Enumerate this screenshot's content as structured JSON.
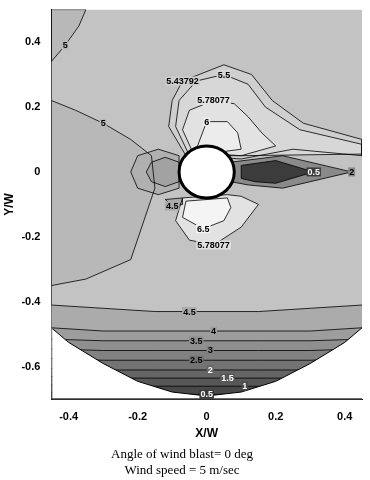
{
  "chart_data": {
    "type": "contour",
    "subtitle": [
      "Angle of wind blast= 0 deg",
      "Wind speed = 5 m/sec"
    ],
    "x_label": "X/W",
    "y_label": "Y/W",
    "xlim": [
      -0.45,
      0.45
    ],
    "xticks": [
      -0.4,
      -0.2,
      0,
      0.2,
      0.4
    ],
    "ylim": [
      -0.7,
      0.5
    ],
    "yticks": [
      -0.6,
      -0.4,
      -0.2,
      0,
      0.2,
      0.4
    ],
    "grid": false,
    "color": "#c3c3c3",
    "cylinder": {
      "center": [
        0,
        0
      ],
      "radius": 0.08
    },
    "domain_edge": [
      [
        -0.45,
        -0.48
      ],
      [
        -0.4,
        -0.525
      ],
      [
        -0.3,
        -0.59
      ],
      [
        -0.2,
        -0.645
      ],
      [
        -0.1,
        -0.678
      ],
      [
        0,
        -0.69
      ],
      [
        0.1,
        -0.678
      ],
      [
        0.2,
        -0.645
      ],
      [
        0.3,
        -0.59
      ],
      [
        0.4,
        -0.525
      ],
      [
        0.45,
        -0.48
      ]
    ],
    "series": [
      {
        "name": "4.5",
        "color": "#ababab",
        "values": [
          [
            -0.45,
            -0.41
          ],
          [
            -0.3,
            -0.42
          ],
          [
            -0.15,
            -0.43
          ],
          [
            -0.05,
            -0.43
          ],
          [
            0.15,
            -0.43
          ],
          [
            0.3,
            -0.42
          ],
          [
            0.45,
            -0.41
          ]
        ]
      },
      {
        "name": "4",
        "color": "#9d9d9d",
        "values": [
          [
            -0.45,
            -0.48
          ],
          [
            -0.3,
            -0.49
          ],
          [
            -0.15,
            -0.49
          ],
          [
            0.02,
            -0.49
          ],
          [
            0.15,
            -0.49
          ],
          [
            0.3,
            -0.49
          ],
          [
            0.45,
            -0.48
          ]
        ]
      },
      {
        "name": "3.5",
        "color": "#8f8f8f",
        "values": [
          [
            -0.45,
            -0.515
          ],
          [
            -0.3,
            -0.52
          ],
          [
            -0.15,
            -0.52
          ],
          [
            -0.03,
            -0.52
          ],
          [
            0.15,
            -0.52
          ],
          [
            0.3,
            -0.52
          ],
          [
            0.45,
            -0.515
          ]
        ]
      },
      {
        "name": "3",
        "color": "#818181",
        "values": [
          [
            -0.45,
            -0.545
          ],
          [
            -0.3,
            -0.55
          ],
          [
            -0.15,
            -0.55
          ],
          [
            0.01,
            -0.55
          ],
          [
            0.15,
            -0.55
          ],
          [
            0.3,
            -0.55
          ],
          [
            0.45,
            -0.545
          ]
        ]
      },
      {
        "name": "2.5",
        "color": "#737373",
        "values": [
          [
            -0.45,
            -0.575
          ],
          [
            -0.3,
            -0.58
          ],
          [
            -0.15,
            -0.58
          ],
          [
            -0.03,
            -0.58
          ],
          [
            0.15,
            -0.58
          ],
          [
            0.3,
            -0.58
          ],
          [
            0.45,
            -0.575
          ]
        ]
      },
      {
        "name": "2",
        "color": "#656565",
        "values": [
          [
            -0.45,
            -0.605
          ],
          [
            -0.3,
            -0.61
          ],
          [
            -0.15,
            -0.61
          ],
          [
            0.01,
            -0.61
          ],
          [
            0.15,
            -0.61
          ],
          [
            0.3,
            -0.61
          ],
          [
            0.45,
            -0.605
          ]
        ]
      },
      {
        "name": "1.5",
        "color": "#575757",
        "values": [
          [
            -0.45,
            -0.63
          ],
          [
            -0.3,
            -0.635
          ],
          [
            -0.15,
            -0.635
          ],
          [
            0.06,
            -0.635
          ],
          [
            0.2,
            -0.635
          ],
          [
            0.3,
            -0.635
          ],
          [
            0.45,
            -0.63
          ]
        ]
      },
      {
        "name": "1",
        "color": "#494949",
        "values": [
          [
            -0.45,
            -0.655
          ],
          [
            -0.3,
            -0.66
          ],
          [
            -0.15,
            -0.66
          ],
          [
            0.11,
            -0.66
          ],
          [
            0.2,
            -0.66
          ],
          [
            0.3,
            -0.66
          ],
          [
            0.45,
            -0.655
          ]
        ]
      },
      {
        "name": "0.5",
        "color": "#3b3b3b",
        "values": [
          [
            -0.45,
            -0.68
          ],
          [
            -0.3,
            -0.685
          ],
          [
            -0.15,
            -0.685
          ],
          [
            0,
            -0.685
          ],
          [
            0.15,
            -0.685
          ],
          [
            0.3,
            -0.685
          ],
          [
            0.45,
            -0.68
          ]
        ]
      },
      {
        "name": "5",
        "color": "#b8b8b8",
        "values": [
          [
            -0.45,
            -0.35
          ],
          [
            -0.45,
            -0.1
          ],
          [
            -0.45,
            0
          ],
          [
            -0.45,
            0.1
          ],
          [
            -0.45,
            0.22
          ],
          [
            -0.38,
            0.19
          ],
          [
            -0.3,
            0.15
          ],
          [
            -0.22,
            0.1
          ],
          [
            -0.16,
            0.05
          ],
          [
            -0.15,
            -0.05
          ],
          [
            -0.22,
            -0.27
          ],
          [
            -0.35,
            -0.33
          ],
          [
            -0.45,
            -0.35
          ]
        ]
      },
      {
        "name": "5",
        "color": "#b8b8b8",
        "values": [
          [
            -0.45,
            0.5
          ],
          [
            -0.45,
            0.42
          ],
          [
            -0.45,
            0.34
          ],
          [
            -0.41,
            0.39
          ],
          [
            -0.37,
            0.45
          ],
          [
            -0.35,
            0.5
          ],
          [
            -0.45,
            0.5
          ]
        ]
      },
      {
        "name": "5.43792",
        "color": "#cfcfcf",
        "values": [
          [
            0.45,
            0.05
          ],
          [
            0.25,
            0.07
          ],
          [
            0.1,
            0.04
          ],
          [
            -0.06,
            0.05
          ],
          [
            -0.11,
            0.14
          ],
          [
            -0.1,
            0.22
          ],
          [
            -0.07,
            0.28
          ],
          [
            0.05,
            0.33
          ],
          [
            0.13,
            0.3
          ],
          [
            0.19,
            0.22
          ],
          [
            0.28,
            0.15
          ],
          [
            0.45,
            0.1
          ],
          [
            0.45,
            0.05
          ]
        ]
      },
      {
        "name": "5.5",
        "color": "#d7d7d7",
        "values": [
          [
            0.45,
            0.055
          ],
          [
            0.1,
            0.05
          ],
          [
            -0.05,
            0.05
          ],
          [
            -0.09,
            0.14
          ],
          [
            -0.08,
            0.22
          ],
          [
            -0.03,
            0.28
          ],
          [
            0.05,
            0.3
          ],
          [
            0.12,
            0.27
          ],
          [
            0.17,
            0.2
          ],
          [
            0.27,
            0.13
          ],
          [
            0.45,
            0.085
          ],
          [
            0.45,
            0.055
          ]
        ]
      },
      {
        "name": "5.78077",
        "color": "#e2e2e2",
        "values": [
          [
            0.2,
            0.08
          ],
          [
            0.1,
            0.05
          ],
          [
            -0.04,
            0.06
          ],
          [
            -0.07,
            0.13
          ],
          [
            -0.05,
            0.19
          ],
          [
            0.02,
            0.22
          ],
          [
            0.08,
            0.21
          ],
          [
            0.12,
            0.17
          ],
          [
            0.16,
            0.12
          ],
          [
            0.2,
            0.08
          ]
        ]
      },
      {
        "name": "6",
        "color": "#ececec",
        "values": [
          [
            0.1,
            0.07
          ],
          [
            0.03,
            0.06
          ],
          [
            -0.03,
            0.07
          ],
          [
            0,
            0.155
          ],
          [
            0.06,
            0.155
          ],
          [
            0.09,
            0.12
          ],
          [
            0.1,
            0.07
          ]
        ]
      },
      {
        "name": "5.78077",
        "color": "#e2e2e2",
        "values": [
          [
            0.06,
            -0.07
          ],
          [
            -0.07,
            -0.08
          ],
          [
            -0.09,
            -0.15
          ],
          [
            -0.05,
            -0.21
          ],
          [
            0.02,
            -0.225
          ],
          [
            0.1,
            -0.17
          ],
          [
            0.15,
            -0.1
          ],
          [
            0.1,
            -0.075
          ],
          [
            0.06,
            -0.07
          ]
        ]
      },
      {
        "name": "6.5",
        "color": "#f4f4f4",
        "values": [
          [
            0.06,
            -0.08
          ],
          [
            -0.06,
            -0.09
          ],
          [
            -0.07,
            -0.14
          ],
          [
            -0.01,
            -0.175
          ],
          [
            0.05,
            -0.15
          ],
          [
            0.07,
            -0.11
          ],
          [
            0.06,
            -0.08
          ]
        ]
      },
      {
        "name": "4.5",
        "color": "#ababab",
        "values": [
          [
            -0.07,
            -0.08
          ],
          [
            -0.12,
            -0.085
          ],
          [
            -0.1,
            -0.105
          ],
          [
            -0.07,
            -0.1
          ],
          [
            -0.07,
            -0.08
          ]
        ]
      },
      {
        "color": "#b0b0b0",
        "values": [
          [
            -0.08,
            0.05
          ],
          [
            -0.14,
            0.07
          ],
          [
            -0.2,
            0.05
          ],
          [
            -0.22,
            0
          ],
          [
            -0.2,
            -0.05
          ],
          [
            -0.14,
            -0.07
          ],
          [
            -0.08,
            -0.05
          ],
          [
            -0.08,
            0.05
          ]
        ]
      },
      {
        "color": "#a2a2a2",
        "values": [
          [
            -0.08,
            0.03
          ],
          [
            -0.12,
            0.045
          ],
          [
            -0.16,
            0.03
          ],
          [
            -0.175,
            0
          ],
          [
            -0.16,
            -0.03
          ],
          [
            -0.12,
            -0.045
          ],
          [
            -0.08,
            -0.03
          ],
          [
            -0.08,
            0.03
          ]
        ]
      },
      {
        "name": "2",
        "color": "#8a8a8a",
        "values": [
          [
            0.07,
            -0.03
          ],
          [
            0.07,
            0.03
          ],
          [
            0.22,
            0.05
          ],
          [
            0.42,
            0
          ],
          [
            0.22,
            -0.05
          ],
          [
            0.12,
            -0.04
          ],
          [
            0.07,
            -0.03
          ]
        ]
      },
      {
        "name": "0.5",
        "color": "#3c3c3c",
        "values": [
          [
            0.1,
            -0.02
          ],
          [
            0.1,
            0.02
          ],
          [
            0.2,
            0.035
          ],
          [
            0.31,
            0
          ],
          [
            0.2,
            -0.035
          ],
          [
            0.14,
            -0.03
          ],
          [
            0.1,
            -0.02
          ]
        ]
      }
    ]
  }
}
